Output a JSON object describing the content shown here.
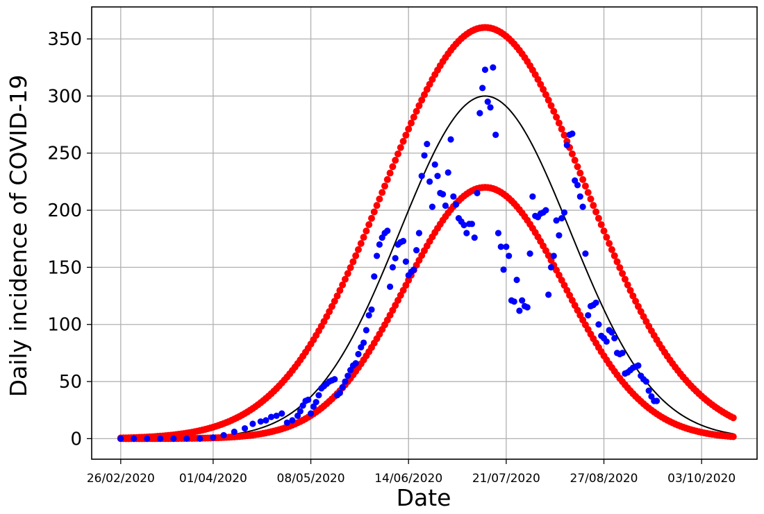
{
  "chart_data": {
    "type": "scatter",
    "title": "",
    "xlabel": "Date",
    "ylabel": "Daily incidence of COVID-19",
    "x_tick_labels": [
      "26/02/2020",
      "01/04/2020",
      "08/05/2020",
      "14/06/2020",
      "21/07/2020",
      "27/08/2020",
      "03/10/2020"
    ],
    "x_tick_dates": [
      "2020-02-26",
      "2020-04-01",
      "2020-05-08",
      "2020-06-14",
      "2020-07-21",
      "2020-08-27",
      "2020-10-03"
    ],
    "y_tick_labels": [
      "0",
      "50",
      "100",
      "150",
      "200",
      "250",
      "300",
      "350"
    ],
    "y_ticks": [
      0,
      50,
      100,
      150,
      200,
      250,
      300,
      350
    ],
    "xlim": [
      "2020-02-15",
      "2020-10-24"
    ],
    "ylim": [
      -18,
      378
    ],
    "grid": true,
    "colors": {
      "observed": "#0000ff",
      "band": "#ff0000",
      "fit": "#000000",
      "grid": "#b0b0b0"
    },
    "series": [
      {
        "kind": "observed",
        "style": "blue dots",
        "points": [
          [
            "2020-02-26",
            0
          ],
          [
            "2020-03-02",
            0
          ],
          [
            "2020-03-07",
            0
          ],
          [
            "2020-03-12",
            0
          ],
          [
            "2020-03-17",
            0
          ],
          [
            "2020-03-22",
            0
          ],
          [
            "2020-03-27",
            0
          ],
          [
            "2020-04-01",
            1
          ],
          [
            "2020-04-05",
            3
          ],
          [
            "2020-04-09",
            6
          ],
          [
            "2020-04-13",
            9
          ],
          [
            "2020-04-16",
            13
          ],
          [
            "2020-04-19",
            15
          ],
          [
            "2020-04-21",
            16
          ],
          [
            "2020-04-23",
            19
          ],
          [
            "2020-04-25",
            20
          ],
          [
            "2020-04-27",
            22
          ],
          [
            "2020-04-29",
            14
          ],
          [
            "2020-05-01",
            16
          ],
          [
            "2020-05-03",
            20
          ],
          [
            "2020-05-04",
            24
          ],
          [
            "2020-05-05",
            29
          ],
          [
            "2020-05-06",
            33
          ],
          [
            "2020-05-07",
            34
          ],
          [
            "2020-05-08",
            22
          ],
          [
            "2020-05-09",
            28
          ],
          [
            "2020-05-10",
            32
          ],
          [
            "2020-05-11",
            38
          ],
          [
            "2020-05-12",
            44
          ],
          [
            "2020-05-13",
            46
          ],
          [
            "2020-05-14",
            48
          ],
          [
            "2020-05-15",
            50
          ],
          [
            "2020-05-16",
            51
          ],
          [
            "2020-05-17",
            52
          ],
          [
            "2020-05-18",
            38
          ],
          [
            "2020-05-19",
            40
          ],
          [
            "2020-05-20",
            45
          ],
          [
            "2020-05-21",
            50
          ],
          [
            "2020-05-22",
            55
          ],
          [
            "2020-05-23",
            60
          ],
          [
            "2020-05-24",
            64
          ],
          [
            "2020-05-25",
            66
          ],
          [
            "2020-05-26",
            74
          ],
          [
            "2020-05-27",
            80
          ],
          [
            "2020-05-28",
            84
          ],
          [
            "2020-05-29",
            95
          ],
          [
            "2020-05-30",
            108
          ],
          [
            "2020-05-31",
            113
          ],
          [
            "2020-06-01",
            142
          ],
          [
            "2020-06-02",
            160
          ],
          [
            "2020-06-03",
            170
          ],
          [
            "2020-06-04",
            176
          ],
          [
            "2020-06-05",
            180
          ],
          [
            "2020-06-06",
            182
          ],
          [
            "2020-06-07",
            133
          ],
          [
            "2020-06-08",
            150
          ],
          [
            "2020-06-09",
            158
          ],
          [
            "2020-06-10",
            170
          ],
          [
            "2020-06-11",
            172
          ],
          [
            "2020-06-12",
            173
          ],
          [
            "2020-06-13",
            155
          ],
          [
            "2020-06-14",
            143
          ],
          [
            "2020-06-15",
            146
          ],
          [
            "2020-06-16",
            148
          ],
          [
            "2020-06-17",
            165
          ],
          [
            "2020-06-18",
            180
          ],
          [
            "2020-06-19",
            230
          ],
          [
            "2020-06-20",
            248
          ],
          [
            "2020-06-21",
            258
          ],
          [
            "2020-06-22",
            225
          ],
          [
            "2020-06-23",
            203
          ],
          [
            "2020-06-24",
            240
          ],
          [
            "2020-06-25",
            230
          ],
          [
            "2020-06-26",
            215
          ],
          [
            "2020-06-27",
            214
          ],
          [
            "2020-06-28",
            204
          ],
          [
            "2020-06-29",
            233
          ],
          [
            "2020-06-30",
            262
          ],
          [
            "2020-07-01",
            212
          ],
          [
            "2020-07-02",
            205
          ],
          [
            "2020-07-03",
            193
          ],
          [
            "2020-07-04",
            190
          ],
          [
            "2020-07-05",
            187
          ],
          [
            "2020-07-06",
            180
          ],
          [
            "2020-07-07",
            188
          ],
          [
            "2020-07-08",
            188
          ],
          [
            "2020-07-09",
            176
          ],
          [
            "2020-07-10",
            215
          ],
          [
            "2020-07-11",
            285
          ],
          [
            "2020-07-12",
            307
          ],
          [
            "2020-07-13",
            323
          ],
          [
            "2020-07-14",
            295
          ],
          [
            "2020-07-15",
            290
          ],
          [
            "2020-07-16",
            325
          ],
          [
            "2020-07-17",
            266
          ],
          [
            "2020-07-18",
            180
          ],
          [
            "2020-07-19",
            168
          ],
          [
            "2020-07-20",
            148
          ],
          [
            "2020-07-21",
            168
          ],
          [
            "2020-07-22",
            160
          ],
          [
            "2020-07-23",
            121
          ],
          [
            "2020-07-24",
            120
          ],
          [
            "2020-07-25",
            139
          ],
          [
            "2020-07-26",
            112
          ],
          [
            "2020-07-27",
            121
          ],
          [
            "2020-07-28",
            116
          ],
          [
            "2020-07-29",
            115
          ],
          [
            "2020-07-30",
            162
          ],
          [
            "2020-07-31",
            212
          ],
          [
            "2020-08-01",
            195
          ],
          [
            "2020-08-02",
            194
          ],
          [
            "2020-08-03",
            197
          ],
          [
            "2020-08-04",
            198
          ],
          [
            "2020-08-05",
            200
          ],
          [
            "2020-08-06",
            126
          ],
          [
            "2020-08-07",
            150
          ],
          [
            "2020-08-08",
            160
          ],
          [
            "2020-08-09",
            191
          ],
          [
            "2020-08-10",
            178
          ],
          [
            "2020-08-11",
            193
          ],
          [
            "2020-08-12",
            198
          ],
          [
            "2020-08-13",
            257
          ],
          [
            "2020-08-14",
            266
          ],
          [
            "2020-08-15",
            267
          ],
          [
            "2020-08-16",
            226
          ],
          [
            "2020-08-17",
            222
          ],
          [
            "2020-08-18",
            212
          ],
          [
            "2020-08-19",
            203
          ],
          [
            "2020-08-20",
            162
          ],
          [
            "2020-08-21",
            108
          ],
          [
            "2020-08-22",
            116
          ],
          [
            "2020-08-23",
            117
          ],
          [
            "2020-08-24",
            119
          ],
          [
            "2020-08-25",
            100
          ],
          [
            "2020-08-26",
            90
          ],
          [
            "2020-08-27",
            88
          ],
          [
            "2020-08-28",
            85
          ],
          [
            "2020-08-29",
            95
          ],
          [
            "2020-08-30",
            93
          ],
          [
            "2020-08-31",
            88
          ],
          [
            "2020-09-01",
            75
          ],
          [
            "2020-09-02",
            74
          ],
          [
            "2020-09-03",
            75
          ],
          [
            "2020-09-04",
            57
          ],
          [
            "2020-09-05",
            58
          ],
          [
            "2020-09-06",
            60
          ],
          [
            "2020-09-07",
            62
          ],
          [
            "2020-09-08",
            63
          ],
          [
            "2020-09-09",
            64
          ],
          [
            "2020-09-10",
            55
          ],
          [
            "2020-09-11",
            52
          ],
          [
            "2020-09-12",
            50
          ],
          [
            "2020-09-13",
            42
          ],
          [
            "2020-09-14",
            37
          ],
          [
            "2020-09-15",
            33
          ],
          [
            "2020-09-16",
            33
          ]
        ]
      },
      {
        "kind": "band",
        "style": "red dots, upper",
        "curve": "gaussian",
        "peak": 360,
        "peak_date": "2020-07-13",
        "sd_days": 38.5,
        "base": 0,
        "start": "2020-02-26",
        "end": "2020-10-15",
        "step_days": 1
      },
      {
        "kind": "band",
        "style": "red dots, lower",
        "curve": "gaussian",
        "peak": 220,
        "peak_date": "2020-07-13",
        "sd_days": 30.2,
        "base": 0,
        "start": "2020-02-26",
        "end": "2020-10-15",
        "step_days": 1
      },
      {
        "kind": "fit",
        "style": "black line",
        "curve": "gaussian",
        "peak": 300,
        "peak_date": "2020-07-13",
        "sd_days": 32.2,
        "base": 0,
        "start": "2020-02-26",
        "end": "2020-10-15",
        "step_days": 1
      }
    ]
  }
}
